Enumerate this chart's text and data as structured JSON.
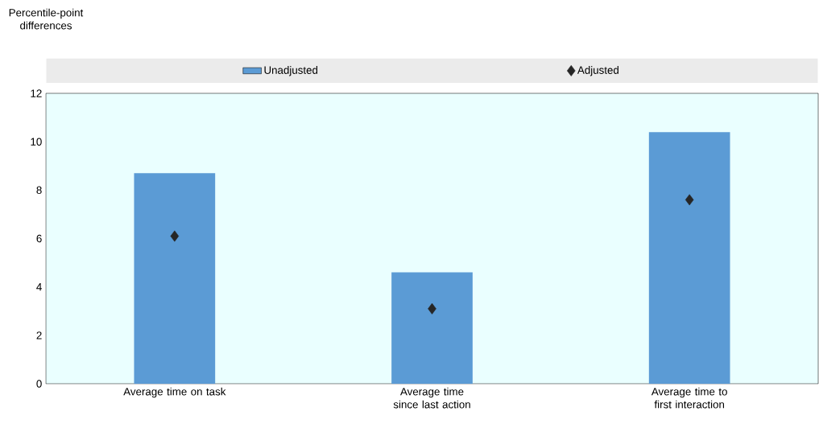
{
  "chart_data": {
    "type": "bar",
    "annotations": [
      "Percentile-point differences"
    ],
    "categories": [
      "Average time on task",
      "Average time since last action",
      "Average time to first interaction"
    ],
    "series": [
      {
        "name": "Unadjusted",
        "color": "#5b9bd5",
        "values": [
          8.7,
          4.6,
          10.4
        ]
      },
      {
        "name": "Adjusted",
        "type": "scatter",
        "color": "#262626",
        "marker": "diamond",
        "x": [
          "Average time on task",
          "Average time since last action",
          "Average time to first interaction"
        ],
        "values": [
          6.1,
          3.1,
          7.6
        ]
      }
    ],
    "ylim": [
      0,
      12
    ],
    "yticks": [
      0,
      2,
      4,
      6,
      8,
      10,
      12
    ],
    "grid": false,
    "legend": "top"
  }
}
